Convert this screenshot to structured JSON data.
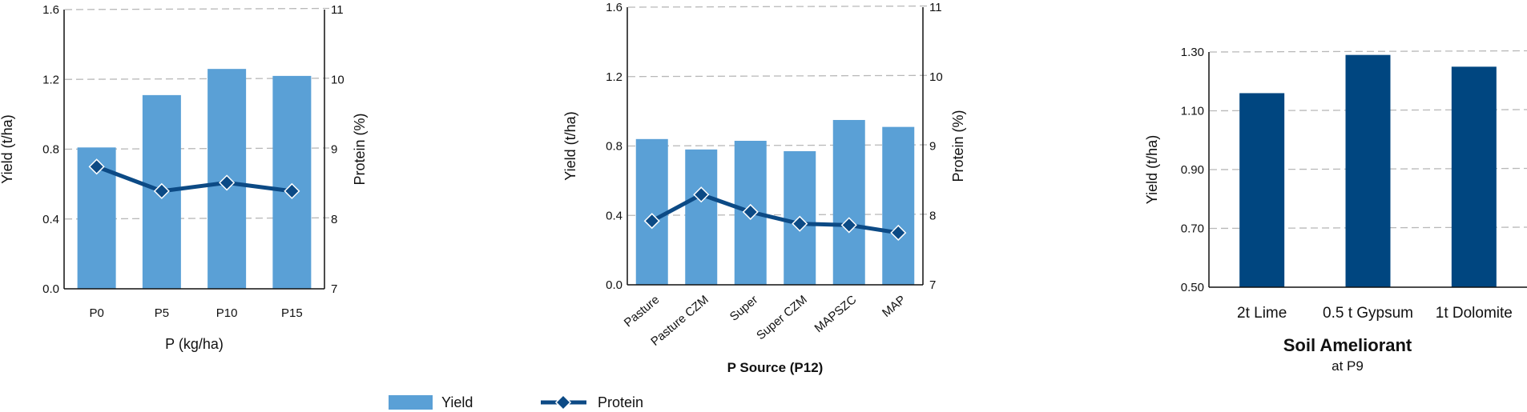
{
  "colors": {
    "yield": "#5aa0d6",
    "protein": "#0c4a85",
    "ameliorant_bar": "#004680",
    "grid": "#b8b8b8",
    "axis": "#111111"
  },
  "legend": [
    {
      "label": "Yield",
      "icon": "yield-swatch"
    },
    {
      "label": "Protein",
      "icon": "protein-line-diamond"
    }
  ],
  "chart_data": [
    {
      "type": "bar",
      "categories": [
        "P0",
        "P5",
        "P10",
        "P15"
      ],
      "series": [
        {
          "name": "Yield",
          "axis": "left",
          "values": [
            0.81,
            1.11,
            1.26,
            1.22
          ]
        },
        {
          "name": "Protein",
          "axis": "right",
          "values": [
            8.75,
            8.4,
            8.52,
            8.4
          ]
        }
      ],
      "xlabel": "P (kg/ha)",
      "ylabel": "Yield (t/ha)",
      "y2label": "Protein (%)",
      "ylim": [
        0,
        1.6
      ],
      "y2lim": [
        7,
        11
      ],
      "yticks": [
        "0.0",
        "0.4",
        "0.8",
        "1.2",
        "1.6"
      ],
      "y2ticks": [
        "7",
        "8",
        "9",
        "10",
        "11"
      ],
      "grid": true
    },
    {
      "type": "bar",
      "categories": [
        "Pasture",
        "Pasture CZM",
        "Super",
        "Super CZM",
        "MAPSZC",
        "MAP"
      ],
      "series": [
        {
          "name": "Yield",
          "axis": "left",
          "values": [
            0.84,
            0.78,
            0.83,
            0.77,
            0.95,
            0.91
          ]
        },
        {
          "name": "Protein",
          "axis": "right",
          "values": [
            7.92,
            8.3,
            8.05,
            7.88,
            7.86,
            7.75
          ]
        }
      ],
      "xlabel": "P Source (P12)",
      "ylabel": "Yield (t/ha)",
      "y2label": "Protein (%)",
      "ylim": [
        0,
        1.6
      ],
      "y2lim": [
        7,
        11
      ],
      "yticks": [
        "0.0",
        "0.4",
        "0.8",
        "1.2",
        "1.6"
      ],
      "y2ticks": [
        "7",
        "8",
        "9",
        "10",
        "11"
      ],
      "grid": true
    },
    {
      "type": "bar",
      "categories": [
        "2t Lime",
        "0.5 t Gypsum",
        "1t Dolomite"
      ],
      "series": [
        {
          "values": [
            1.16,
            1.29,
            1.25
          ]
        }
      ],
      "title": "Soil Ameliorant",
      "subtitle": "at P9",
      "ylabel": "Yield (t/ha)",
      "ylim": [
        0.5,
        1.3
      ],
      "yticks": [
        "0.50",
        "0.70",
        "0.90",
        "1.10",
        "1.30"
      ],
      "grid": true
    }
  ]
}
